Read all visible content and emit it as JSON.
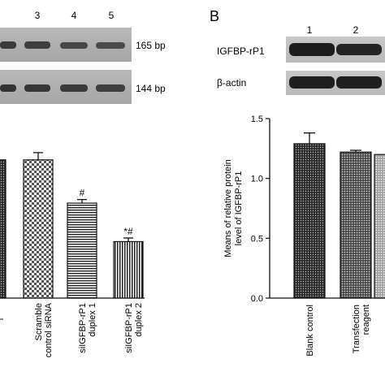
{
  "panel_a": {
    "lane_numbers": [
      "3",
      "4",
      "5"
    ],
    "bands": [
      "165 bp",
      "144 bp"
    ]
  },
  "panel_b": {
    "letter": "B",
    "lane_numbers": [
      "1",
      "2"
    ],
    "bands": [
      "IGFBP-rP1",
      "β-actin"
    ]
  },
  "chart_data": [
    {
      "type": "bar",
      "panel": "A",
      "categories": [
        "",
        "Scramble control siRNA",
        "siIGFBP-rP1 duplex 1",
        "siIGFBP-rP1 duplex 2"
      ],
      "values": [
        1.15,
        1.15,
        0.79,
        0.47
      ],
      "errors": [
        0.0,
        0.06,
        0.03,
        0.03
      ],
      "annotations": [
        "",
        "",
        "#",
        "*#"
      ],
      "patterns": [
        "none",
        "checker",
        "hlines",
        "vlines"
      ],
      "ylim": [
        0,
        1.5
      ]
    },
    {
      "type": "bar",
      "panel": "B",
      "categories": [
        "Blank control",
        "Transfection reagent",
        ""
      ],
      "values": [
        1.29,
        1.22,
        1.2
      ],
      "errors": [
        0.09,
        0.015,
        0
      ],
      "patterns": [
        "dots",
        "dots-gray",
        "dots-light"
      ],
      "ylabel": "Means of relative protein level of IGFBP-rP1",
      "yticks": [
        "0.0",
        "0.5",
        "1.0",
        "1.5"
      ],
      "ylim": [
        0,
        1.5
      ],
      "colors": {
        "bar_fill": "#3a3a3a",
        "bar_light": "#9a9a9a"
      }
    }
  ]
}
